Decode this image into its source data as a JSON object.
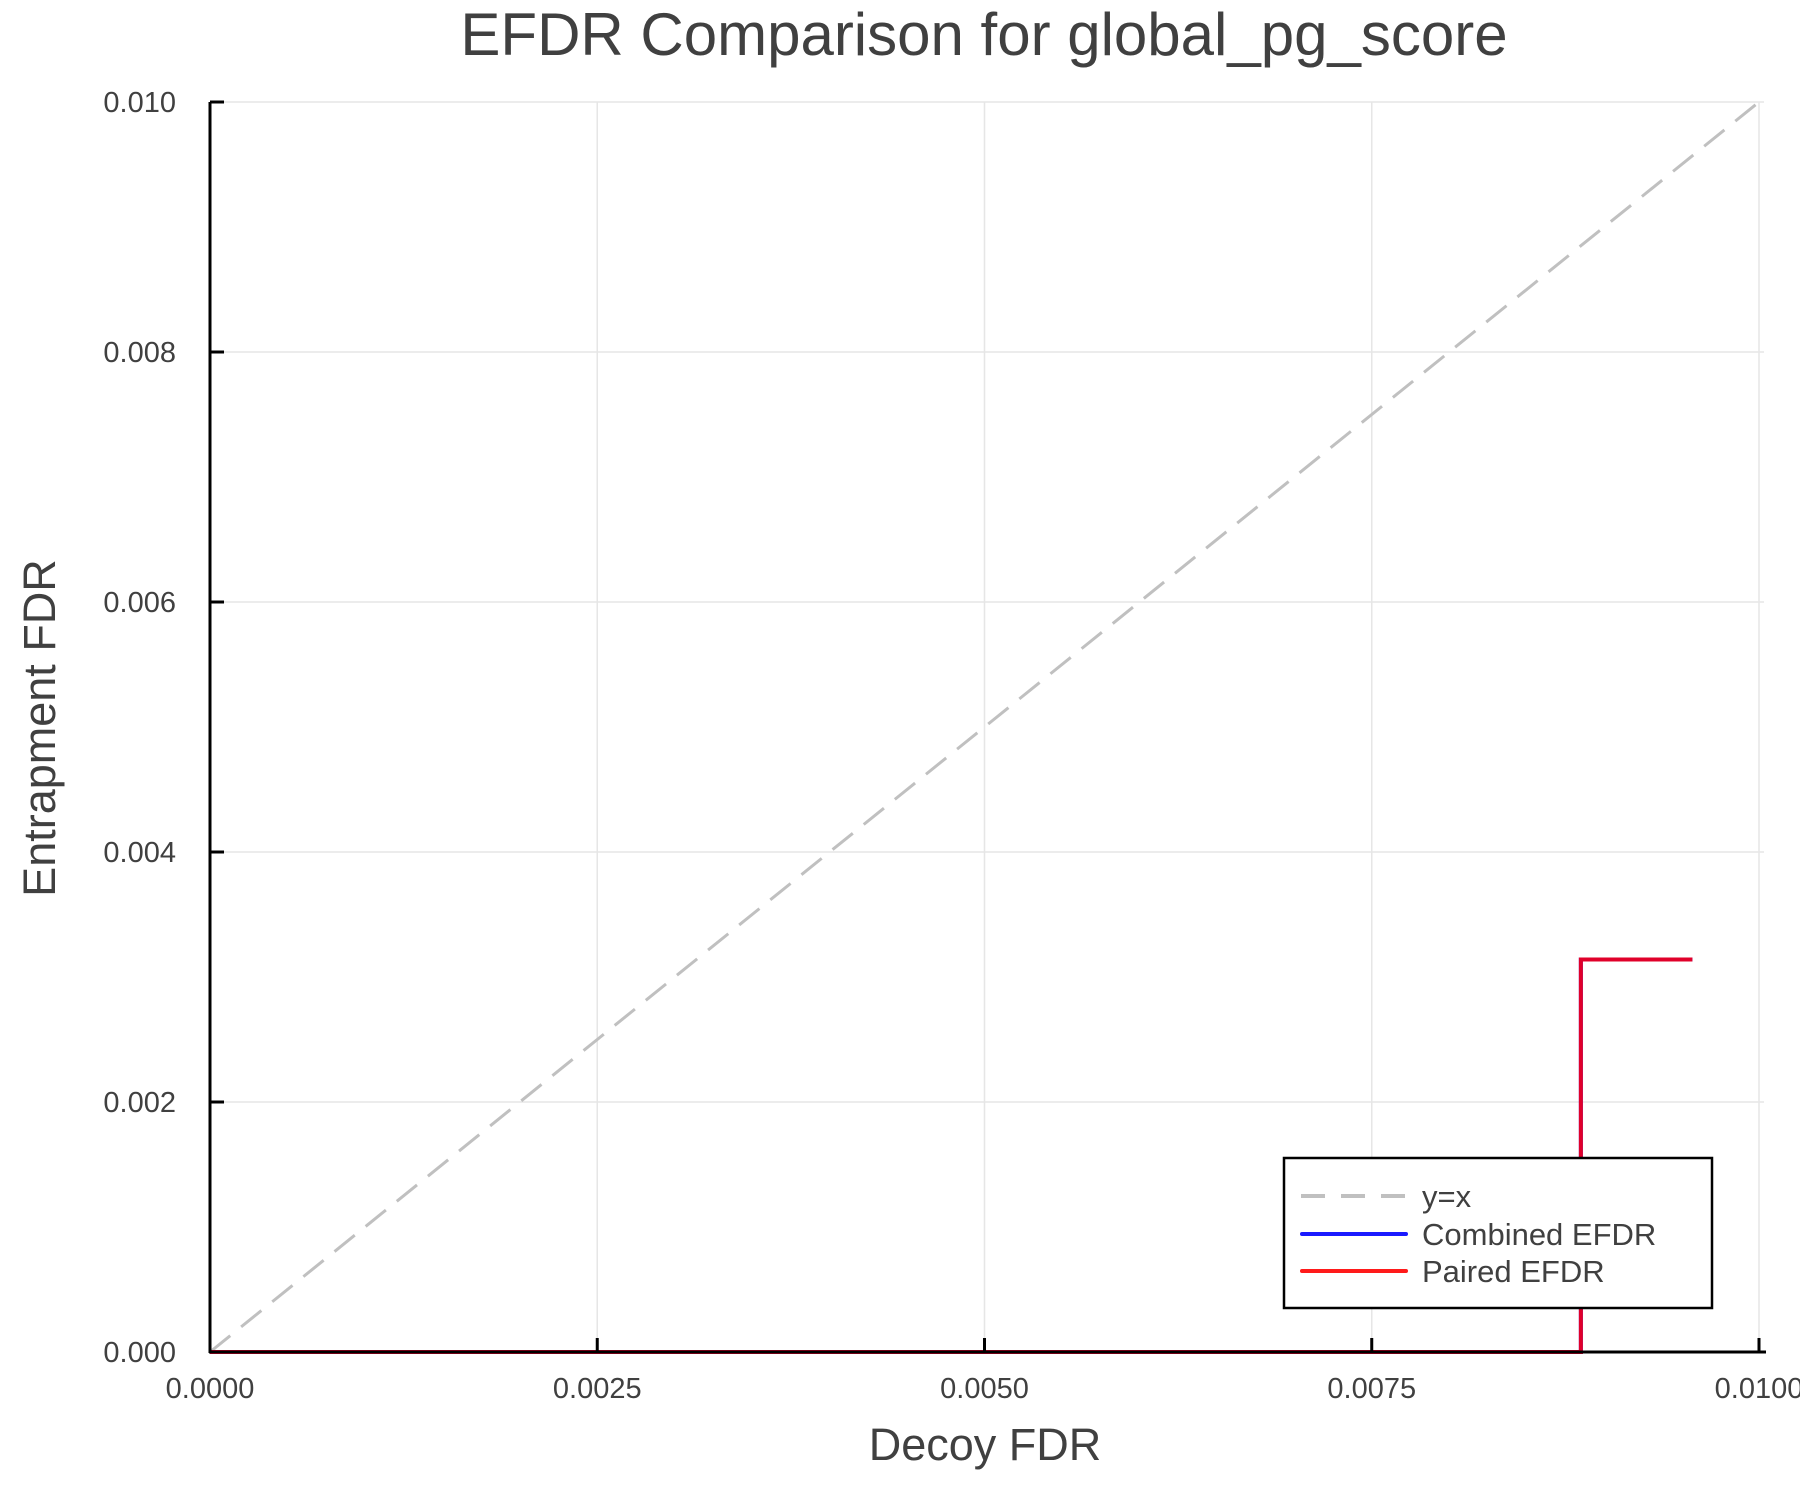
{
  "chart_data": {
    "type": "line",
    "title": "EFDR Comparison for global_pg_score",
    "xlabel": "Decoy FDR",
    "ylabel": "Entrapment FDR",
    "xlim": [
      0.0,
      0.01
    ],
    "ylim": [
      0.0,
      0.01
    ],
    "grid": true,
    "legend_position": "bottom-right",
    "x_ticks": [
      0.0,
      0.0025,
      0.005,
      0.0075,
      0.01
    ],
    "x_tick_labels": [
      "0.0000",
      "0.0025",
      "0.0050",
      "0.0075",
      "0.0100"
    ],
    "y_ticks": [
      0.0,
      0.002,
      0.004,
      0.006,
      0.008,
      0.01
    ],
    "y_tick_labels": [
      "0.000",
      "0.002",
      "0.004",
      "0.006",
      "0.008",
      "0.010"
    ],
    "series": [
      {
        "name": "y=x",
        "color": "#c0c0c0",
        "style": "dashed",
        "x": [
          0.0,
          0.01
        ],
        "y": [
          0.0,
          0.01
        ]
      },
      {
        "name": "Combined EFDR",
        "color": "#1a1aff",
        "style": "solid",
        "step": true,
        "x": [
          0.0,
          0.00885,
          0.00885,
          0.00957
        ],
        "y": [
          0.0,
          0.0,
          0.00314,
          0.00314
        ]
      },
      {
        "name": "Paired EFDR",
        "color": "#ff1a1a",
        "style": "solid",
        "step": true,
        "x": [
          0.0,
          0.00885,
          0.00885,
          0.00957
        ],
        "y": [
          0.0,
          0.0,
          0.00314,
          0.00314
        ]
      }
    ],
    "overlap_color": "#e0002a"
  }
}
